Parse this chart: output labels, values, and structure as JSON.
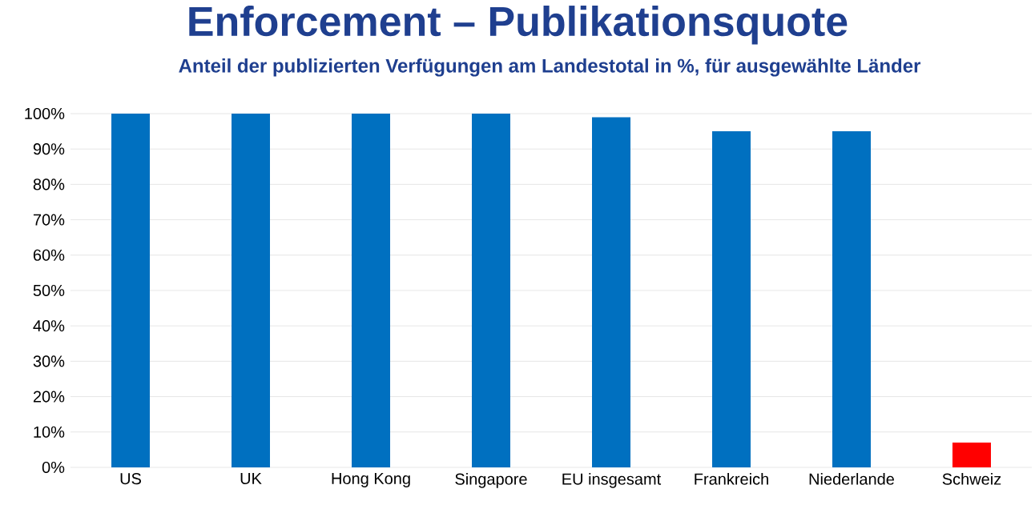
{
  "chart_data": {
    "type": "bar",
    "title": "Enforcement – Publikationsquote",
    "subtitle": "Anteil der publizierten Verfügungen am Landestotal in %, für ausgewählte Länder",
    "categories": [
      "US",
      "UK",
      "Hong Kong",
      "Singapore",
      "EU insgesamt",
      "Frankreich",
      "Niederlande",
      "Schweiz"
    ],
    "values": [
      100,
      100,
      100,
      100,
      99,
      95,
      95,
      7
    ],
    "colors": [
      "#0070c0",
      "#0070c0",
      "#0070c0",
      "#0070c0",
      "#0070c0",
      "#0070c0",
      "#0070c0",
      "#ff0000"
    ],
    "ylim": [
      0,
      100
    ],
    "yticks": [
      {
        "value": 0,
        "label": "0%"
      },
      {
        "value": 10,
        "label": "10%"
      },
      {
        "value": 20,
        "label": "20%"
      },
      {
        "value": 30,
        "label": "30%"
      },
      {
        "value": 40,
        "label": "40%"
      },
      {
        "value": 50,
        "label": "50%"
      },
      {
        "value": 60,
        "label": "60%"
      },
      {
        "value": 70,
        "label": "70%"
      },
      {
        "value": 80,
        "label": "80%"
      },
      {
        "value": 90,
        "label": "90%"
      },
      {
        "value": 100,
        "label": "100%"
      }
    ],
    "grid": "y"
  }
}
